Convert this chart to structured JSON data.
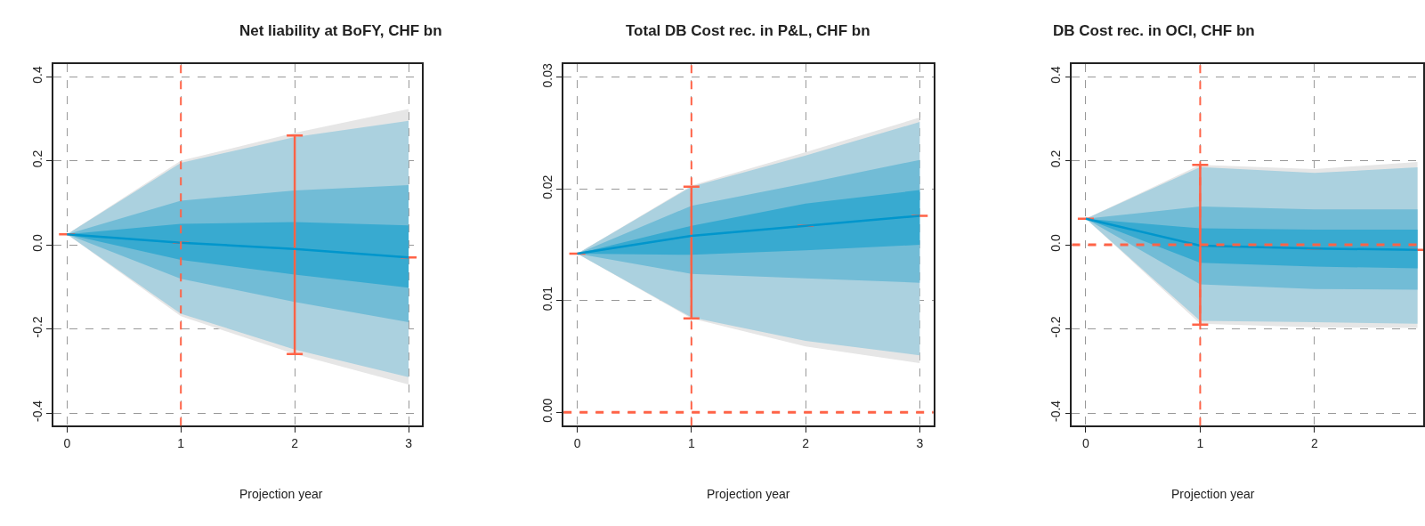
{
  "chart_data": [
    {
      "type": "line",
      "title": "Net liability at BoFY, CHF bn",
      "xlabel": "Projection year",
      "x": [
        0,
        1,
        2,
        3
      ],
      "xlim": [
        -0.12,
        3.12
      ],
      "xticks": [
        0,
        1,
        2,
        3
      ],
      "ylim": [
        -0.43,
        0.43
      ],
      "yticks": [
        {
          "value": -0.4,
          "label": "-0.4"
        },
        {
          "value": -0.2,
          "label": "-0.2"
        },
        {
          "value": 0,
          "label": "0.0"
        },
        {
          "value": 0.2,
          "label": "0.2"
        },
        {
          "value": 0.4,
          "label": "0.4"
        }
      ],
      "grid": true,
      "series": [
        {
          "color": "#e6e6e6",
          "values": [
            null,
            null,
            null,
            null
          ],
          "lower": [
            0.025,
            -0.17,
            -0.26,
            -0.332
          ],
          "upper": [
            0.025,
            0.2,
            0.266,
            0.323
          ]
        },
        {
          "color": "#abd1df",
          "values": [
            null,
            null,
            null,
            null
          ],
          "lower": [
            0.025,
            -0.164,
            -0.249,
            -0.315
          ],
          "upper": [
            0.025,
            0.195,
            0.256,
            0.295
          ]
        },
        {
          "color": "#72bcd6",
          "values": [
            null,
            null,
            null,
            null
          ],
          "lower": [
            0.025,
            -0.081,
            -0.136,
            -0.184
          ],
          "upper": [
            0.025,
            0.105,
            0.129,
            0.142
          ]
        },
        {
          "color": "#38aad0",
          "values": [
            null,
            null,
            null,
            null
          ],
          "lower": [
            0.025,
            -0.036,
            -0.071,
            -0.102
          ],
          "upper": [
            0.025,
            0.05,
            0.054,
            0.046
          ]
        },
        {
          "color": "#0096cc",
          "values": [
            0.025,
            0.005,
            -0.01,
            -0.03
          ],
          "errors": [
            null,
            null,
            [
              -0.26,
              0.26
            ],
            null
          ]
        }
      ],
      "ref_lines": [
        {
          "axis": "x",
          "value": 1,
          "color": "#ff6347",
          "line_style": "dashed"
        }
      ]
    },
    {
      "type": "line",
      "title": "Total DB Cost rec. in P&L, CHF bn",
      "xlabel": "Projection year",
      "x": [
        0,
        1,
        2,
        3
      ],
      "xlim": [
        -0.12,
        3.12
      ],
      "xticks": [
        0,
        1,
        2,
        3
      ],
      "ylim": [
        -0.0012,
        0.0312
      ],
      "yticks": [
        {
          "value": 0,
          "label": "0.00"
        },
        {
          "value": 0.01,
          "label": "0.01"
        },
        {
          "value": 0.02,
          "label": "0.02"
        },
        {
          "value": 0.03,
          "label": "0.03"
        }
      ],
      "grid": true,
      "series": [
        {
          "color": "#e6e6e6",
          "values": [
            null,
            null,
            null,
            null
          ],
          "lower": [
            0.0142,
            0.0084,
            0.0059,
            0.0044
          ],
          "upper": [
            0.0142,
            0.0203,
            0.0233,
            0.0264
          ]
        },
        {
          "color": "#abd1df",
          "values": [
            null,
            null,
            null,
            null
          ],
          "lower": [
            0.0142,
            0.0085,
            0.0064,
            0.0051
          ],
          "upper": [
            0.0142,
            0.0202,
            0.023,
            0.026
          ]
        },
        {
          "color": "#72bcd6",
          "values": [
            null,
            null,
            null,
            null
          ],
          "lower": [
            0.0142,
            0.0124,
            0.012,
            0.0116
          ],
          "upper": [
            0.0142,
            0.0185,
            0.0205,
            0.0226
          ]
        },
        {
          "color": "#38aad0",
          "values": [
            null,
            null,
            null,
            null
          ],
          "lower": [
            0.0142,
            0.0141,
            0.0145,
            0.015
          ],
          "upper": [
            0.0142,
            0.0167,
            0.0187,
            0.0199
          ]
        },
        {
          "color": "#0096cc",
          "values": [
            0.0142,
            0.0158,
            0.0167,
            0.0176
          ],
          "errors": [
            null,
            [
              0.0084,
              0.0202
            ],
            null,
            null
          ]
        }
      ],
      "ref_lines": [
        {
          "axis": "x",
          "value": 1,
          "color": "#ff6347",
          "line_style": "dashed"
        },
        {
          "axis": "y",
          "value": 0,
          "color": "#ff6347",
          "line_style": "dashed"
        }
      ]
    },
    {
      "type": "line",
      "title": "DB Cost rec. in OCI, CHF bn",
      "xlabel": "Projection year",
      "x": [
        0,
        1,
        2,
        2.9
      ],
      "xlim": [
        -0.12,
        2.95
      ],
      "xticks": [
        0,
        1,
        2
      ],
      "ylim": [
        -0.43,
        0.43
      ],
      "yticks": [
        {
          "value": -0.4,
          "label": "-0.4"
        },
        {
          "value": -0.2,
          "label": "-0.2"
        },
        {
          "value": 0,
          "label": "0.0"
        },
        {
          "value": 0.2,
          "label": "0.2"
        },
        {
          "value": 0.4,
          "label": "0.4"
        }
      ],
      "grid": true,
      "series": [
        {
          "color": "#e6e6e6",
          "values": [
            null,
            null,
            null,
            null
          ],
          "lower": [
            0.062,
            -0.188,
            -0.196,
            -0.198
          ],
          "upper": [
            0.062,
            0.19,
            0.18,
            0.197
          ]
        },
        {
          "color": "#abd1df",
          "values": [
            null,
            null,
            null,
            null
          ],
          "lower": [
            0.062,
            -0.181,
            -0.184,
            -0.188
          ],
          "upper": [
            0.062,
            0.185,
            0.171,
            0.184
          ]
        },
        {
          "color": "#72bcd6",
          "values": [
            null,
            null,
            null,
            null
          ],
          "lower": [
            0.062,
            -0.094,
            -0.105,
            -0.107
          ],
          "upper": [
            0.062,
            0.091,
            0.084,
            0.084
          ]
        },
        {
          "color": "#38aad0",
          "values": [
            null,
            null,
            null,
            null
          ],
          "lower": [
            0.062,
            -0.043,
            -0.052,
            -0.056
          ],
          "upper": [
            0.062,
            0.039,
            0.036,
            0.036
          ]
        },
        {
          "color": "#0096cc",
          "values": [
            0.062,
            -0.002,
            -0.009,
            -0.012
          ],
          "errors": [
            null,
            [
              -0.19,
              0.19
            ],
            null,
            null
          ]
        }
      ],
      "ref_lines": [
        {
          "axis": "x",
          "value": 1,
          "color": "#ff6347",
          "line_style": "dashed"
        },
        {
          "axis": "y",
          "value": 0,
          "color": "#ff6347",
          "line_style": "dashed"
        }
      ]
    }
  ]
}
